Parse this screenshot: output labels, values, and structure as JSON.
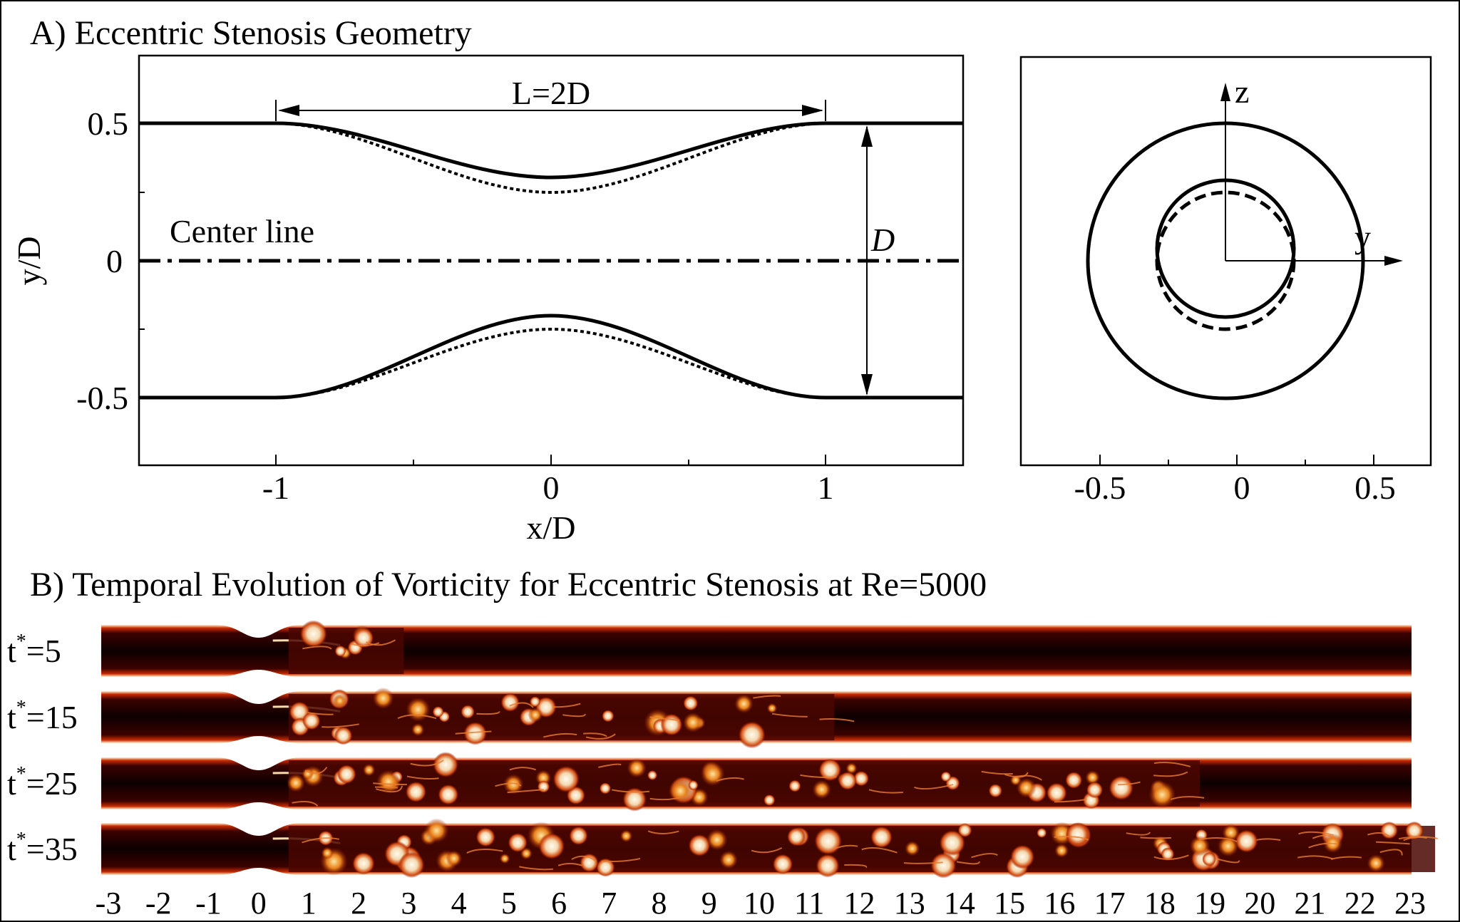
{
  "panel_a": {
    "title": "A) Eccentric Stenosis Geometry",
    "left_plot": {
      "xlabel": "x/D",
      "ylabel": "y/D",
      "xticks": [
        "-1",
        "0",
        "1"
      ],
      "yticks": [
        "0.5",
        "0",
        "-0.5"
      ],
      "xlim": [
        -1.5,
        1.5
      ],
      "ylim": [
        -0.75,
        0.75
      ],
      "length_label": "L=2D",
      "diameter_label": "D",
      "centerline_label": "Center line"
    },
    "right_plot": {
      "xticks": [
        "-0.5",
        "0",
        "0.5"
      ],
      "z_label": "z",
      "y_label": "y"
    }
  },
  "panel_b": {
    "title": "B) Temporal Evolution of Vorticity for Eccentric Stenosis at Re=5000",
    "rows": [
      {
        "t": "5"
      },
      {
        "t": "15"
      },
      {
        "t": "25"
      },
      {
        "t": "35"
      }
    ],
    "x_ticks": [
      "-3",
      "-2",
      "-1",
      "0",
      "1",
      "2",
      "3",
      "4",
      "5",
      "6",
      "7",
      "8",
      "9",
      "10",
      "11",
      "12",
      "13",
      "14",
      "15",
      "16",
      "17",
      "18",
      "19",
      "20",
      "21",
      "22",
      "23"
    ],
    "colors": {
      "dark": "#120000",
      "mid": "#a81800",
      "light": "#f6e4c6"
    }
  }
}
